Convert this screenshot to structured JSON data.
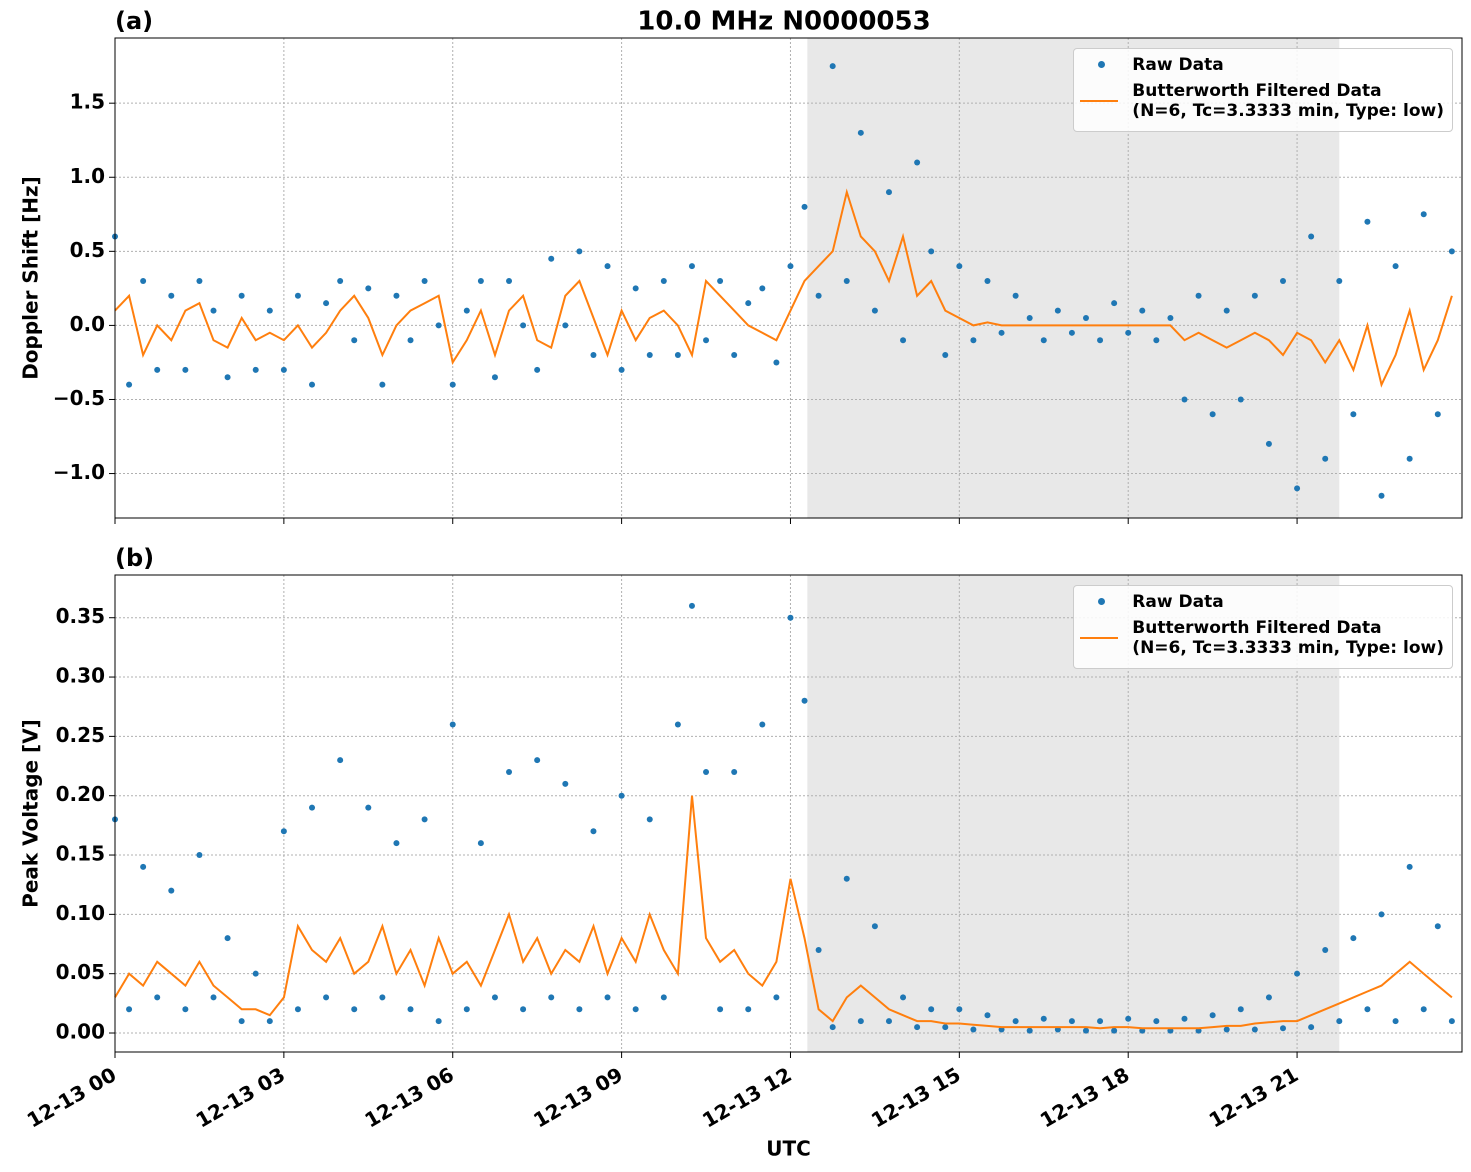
{
  "title": "10.0 MHz N0000053",
  "chart_data": [
    {
      "type": "line",
      "panel_label": "(a)",
      "ylabel": "Doppler Shift [Hz]",
      "xlim": [
        0,
        23.93
      ],
      "ylim": [
        -1.3,
        1.94
      ],
      "grid": true,
      "legend": "upper right",
      "shade": [
        12.3,
        21.75
      ],
      "shade_color": "#e8e8e8",
      "xticks": [
        0,
        3,
        6,
        9,
        12,
        15,
        18,
        21
      ],
      "yticks": [
        {
          "value": -1,
          "label": "−1.0"
        },
        {
          "value": -0.5,
          "label": "−0.5"
        },
        {
          "value": 0,
          "label": "0.0"
        },
        {
          "value": 0.5,
          "label": "0.5"
        },
        {
          "value": 1,
          "label": "1.0"
        },
        {
          "value": 1.5,
          "label": "1.5"
        }
      ],
      "x": [
        0,
        0.25,
        0.5,
        0.75,
        1,
        1.25,
        1.5,
        1.75,
        2,
        2.25,
        2.5,
        2.75,
        3,
        3.25,
        3.5,
        3.75,
        4,
        4.25,
        4.5,
        4.75,
        5,
        5.25,
        5.5,
        5.75,
        6,
        6.25,
        6.5,
        6.75,
        7,
        7.25,
        7.5,
        7.75,
        8,
        8.25,
        8.5,
        8.75,
        9,
        9.25,
        9.5,
        9.75,
        10,
        10.25,
        10.5,
        10.75,
        11,
        11.25,
        11.5,
        11.75,
        12,
        12.25,
        12.5,
        12.75,
        13,
        13.25,
        13.5,
        13.75,
        14,
        14.25,
        14.5,
        14.75,
        15,
        15.25,
        15.5,
        15.75,
        16,
        16.25,
        16.5,
        16.75,
        17,
        17.25,
        17.5,
        17.75,
        18,
        18.25,
        18.5,
        18.75,
        19,
        19.25,
        19.5,
        19.75,
        20,
        20.25,
        20.5,
        20.75,
        21,
        21.25,
        21.5,
        21.75,
        22,
        22.25,
        22.5,
        22.75,
        23,
        23.25,
        23.5,
        23.75
      ],
      "series": [
        {
          "name": "Raw Data",
          "color": "#1f77b4",
          "mode": "markers",
          "values": [
            0.6,
            -0.4,
            0.3,
            -0.3,
            0.2,
            -0.3,
            0.3,
            0.1,
            -0.35,
            0.2,
            -0.3,
            0.1,
            -0.3,
            0.2,
            -0.4,
            0.15,
            0.3,
            -0.1,
            0.25,
            -0.4,
            0.2,
            -0.1,
            0.3,
            0.0,
            -0.4,
            0.1,
            0.3,
            -0.35,
            0.3,
            0.0,
            -0.3,
            0.45,
            0.0,
            0.5,
            -0.2,
            0.4,
            -0.3,
            0.25,
            -0.2,
            0.3,
            -0.2,
            0.4,
            -0.1,
            0.3,
            -0.2,
            0.15,
            0.25,
            -0.25,
            0.4,
            0.8,
            0.2,
            1.75,
            0.3,
            1.3,
            0.1,
            0.9,
            -0.1,
            1.1,
            0.5,
            -0.2,
            0.4,
            -0.1,
            0.3,
            -0.05,
            0.2,
            0.05,
            -0.1,
            0.1,
            -0.05,
            0.05,
            -0.1,
            0.15,
            -0.05,
            0.1,
            -0.1,
            0.05,
            -0.5,
            0.2,
            -0.6,
            0.1,
            -0.5,
            0.2,
            -0.8,
            0.3,
            -1.1,
            0.6,
            -0.9,
            0.3,
            -0.6,
            0.7,
            -1.15,
            0.4,
            -0.9,
            0.75,
            -0.6,
            0.5
          ]
        },
        {
          "name": "Butterworth Filtered Data\n(N=6, Tc=3.3333 min, Type: low)",
          "color": "#ff7f0e",
          "mode": "line",
          "values": [
            0.1,
            0.2,
            -0.2,
            0.0,
            -0.1,
            0.1,
            0.15,
            -0.1,
            -0.15,
            0.05,
            -0.1,
            -0.05,
            -0.1,
            0.0,
            -0.15,
            -0.05,
            0.1,
            0.2,
            0.05,
            -0.2,
            0.0,
            0.1,
            0.15,
            0.2,
            -0.25,
            -0.1,
            0.1,
            -0.2,
            0.1,
            0.2,
            -0.1,
            -0.15,
            0.2,
            0.3,
            0.05,
            -0.2,
            0.1,
            -0.1,
            0.05,
            0.1,
            0.0,
            -0.2,
            0.3,
            0.2,
            0.1,
            0.0,
            -0.05,
            -0.1,
            0.1,
            0.3,
            0.4,
            0.5,
            0.9,
            0.6,
            0.5,
            0.3,
            0.6,
            0.2,
            0.3,
            0.1,
            0.05,
            0.0,
            0.02,
            0.0,
            0.0,
            0.0,
            0.0,
            0.0,
            0.0,
            0.0,
            0.0,
            0.0,
            0.0,
            0.0,
            0.0,
            0.0,
            -0.1,
            -0.05,
            -0.1,
            -0.15,
            -0.1,
            -0.05,
            -0.1,
            -0.2,
            -0.05,
            -0.1,
            -0.25,
            -0.1,
            -0.3,
            0.0,
            -0.4,
            -0.2,
            0.1,
            -0.3,
            -0.1,
            0.2
          ]
        }
      ]
    },
    {
      "type": "line",
      "panel_label": "(b)",
      "ylabel": "Peak Voltage [V]",
      "xlabel": "UTC",
      "xlim": [
        0,
        23.93
      ],
      "ylim": [
        -0.016,
        0.386
      ],
      "grid": true,
      "legend": "upper right",
      "shade": [
        12.3,
        21.75
      ],
      "shade_color": "#e8e8e8",
      "xticks": [
        {
          "value": 0,
          "label": "12-13 00"
        },
        {
          "value": 3,
          "label": "12-13 03"
        },
        {
          "value": 6,
          "label": "12-13 06"
        },
        {
          "value": 9,
          "label": "12-13 09"
        },
        {
          "value": 12,
          "label": "12-13 12"
        },
        {
          "value": 15,
          "label": "12-13 15"
        },
        {
          "value": 18,
          "label": "12-13 18"
        },
        {
          "value": 21,
          "label": "12-13 21"
        }
      ],
      "yticks": [
        {
          "value": 0,
          "label": "0.00"
        },
        {
          "value": 0.05,
          "label": "0.05"
        },
        {
          "value": 0.1,
          "label": "0.10"
        },
        {
          "value": 0.15,
          "label": "0.15"
        },
        {
          "value": 0.2,
          "label": "0.20"
        },
        {
          "value": 0.25,
          "label": "0.25"
        },
        {
          "value": 0.3,
          "label": "0.30"
        },
        {
          "value": 0.35,
          "label": "0.35"
        }
      ],
      "x": [
        0,
        0.25,
        0.5,
        0.75,
        1,
        1.25,
        1.5,
        1.75,
        2,
        2.25,
        2.5,
        2.75,
        3,
        3.25,
        3.5,
        3.75,
        4,
        4.25,
        4.5,
        4.75,
        5,
        5.25,
        5.5,
        5.75,
        6,
        6.25,
        6.5,
        6.75,
        7,
        7.25,
        7.5,
        7.75,
        8,
        8.25,
        8.5,
        8.75,
        9,
        9.25,
        9.5,
        9.75,
        10,
        10.25,
        10.5,
        10.75,
        11,
        11.25,
        11.5,
        11.75,
        12,
        12.25,
        12.5,
        12.75,
        13,
        13.25,
        13.5,
        13.75,
        14,
        14.25,
        14.5,
        14.75,
        15,
        15.25,
        15.5,
        15.75,
        16,
        16.25,
        16.5,
        16.75,
        17,
        17.25,
        17.5,
        17.75,
        18,
        18.25,
        18.5,
        18.75,
        19,
        19.25,
        19.5,
        19.75,
        20,
        20.25,
        20.5,
        20.75,
        21,
        21.25,
        21.5,
        21.75,
        22,
        22.25,
        22.5,
        22.75,
        23,
        23.25,
        23.5,
        23.75
      ],
      "series": [
        {
          "name": "Raw Data",
          "color": "#1f77b4",
          "mode": "markers",
          "values": [
            0.18,
            0.02,
            0.14,
            0.03,
            0.12,
            0.02,
            0.15,
            0.03,
            0.08,
            0.01,
            0.05,
            0.01,
            0.17,
            0.02,
            0.19,
            0.03,
            0.23,
            0.02,
            0.19,
            0.03,
            0.16,
            0.02,
            0.18,
            0.01,
            0.26,
            0.02,
            0.16,
            0.03,
            0.22,
            0.02,
            0.23,
            0.03,
            0.21,
            0.02,
            0.17,
            0.03,
            0.2,
            0.02,
            0.18,
            0.03,
            0.26,
            0.36,
            0.22,
            0.02,
            0.22,
            0.02,
            0.26,
            0.03,
            0.35,
            0.28,
            0.07,
            0.005,
            0.13,
            0.01,
            0.09,
            0.01,
            0.03,
            0.005,
            0.02,
            0.005,
            0.02,
            0.003,
            0.015,
            0.003,
            0.01,
            0.002,
            0.012,
            0.003,
            0.01,
            0.002,
            0.01,
            0.002,
            0.012,
            0.002,
            0.01,
            0.002,
            0.012,
            0.002,
            0.015,
            0.003,
            0.02,
            0.003,
            0.03,
            0.004,
            0.05,
            0.005,
            0.07,
            0.01,
            0.08,
            0.02,
            0.1,
            0.01,
            0.14,
            0.02,
            0.09,
            0.01
          ]
        },
        {
          "name": "Butterworth Filtered Data\n(N=6, Tc=3.3333 min, Type: low)",
          "color": "#ff7f0e",
          "mode": "line",
          "values": [
            0.03,
            0.05,
            0.04,
            0.06,
            0.05,
            0.04,
            0.06,
            0.04,
            0.03,
            0.02,
            0.02,
            0.015,
            0.03,
            0.09,
            0.07,
            0.06,
            0.08,
            0.05,
            0.06,
            0.09,
            0.05,
            0.07,
            0.04,
            0.08,
            0.05,
            0.06,
            0.04,
            0.07,
            0.1,
            0.06,
            0.08,
            0.05,
            0.07,
            0.06,
            0.09,
            0.05,
            0.08,
            0.06,
            0.1,
            0.07,
            0.05,
            0.2,
            0.08,
            0.06,
            0.07,
            0.05,
            0.04,
            0.06,
            0.13,
            0.08,
            0.02,
            0.01,
            0.03,
            0.04,
            0.03,
            0.02,
            0.015,
            0.01,
            0.01,
            0.008,
            0.008,
            0.007,
            0.006,
            0.005,
            0.005,
            0.005,
            0.005,
            0.005,
            0.005,
            0.005,
            0.004,
            0.005,
            0.005,
            0.004,
            0.004,
            0.004,
            0.004,
            0.004,
            0.005,
            0.006,
            0.006,
            0.008,
            0.009,
            0.01,
            0.01,
            0.015,
            0.02,
            0.025,
            0.03,
            0.035,
            0.04,
            0.05,
            0.06,
            0.05,
            0.04,
            0.03
          ]
        }
      ]
    }
  ]
}
